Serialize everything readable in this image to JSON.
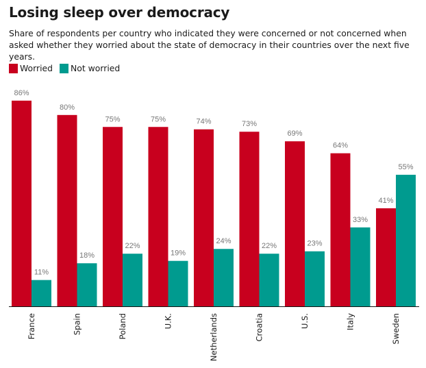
{
  "chart_data": {
    "type": "bar",
    "title": "Losing sleep over democracy",
    "subtitle": "Share of respondents per country who indicated they were concerned or not concerned when asked whether they worried about the state of democracy in their countries over the next five years.",
    "xlabel": "",
    "ylabel": "",
    "ylim": [
      0,
      100
    ],
    "grid": false,
    "legend_position": "top-left",
    "categories": [
      "France",
      "Spain",
      "Poland",
      "U.K.",
      "Netherlands",
      "Croatia",
      "U.S.",
      "Italy",
      "Sweden"
    ],
    "series": [
      {
        "name": "Worried",
        "color": "#c8001e",
        "values": [
          86,
          80,
          75,
          75,
          74,
          73,
          69,
          64,
          41
        ]
      },
      {
        "name": "Not worried",
        "color": "#009b8f",
        "values": [
          11,
          18,
          22,
          19,
          24,
          22,
          23,
          33,
          55
        ]
      }
    ],
    "value_suffix": "%"
  }
}
